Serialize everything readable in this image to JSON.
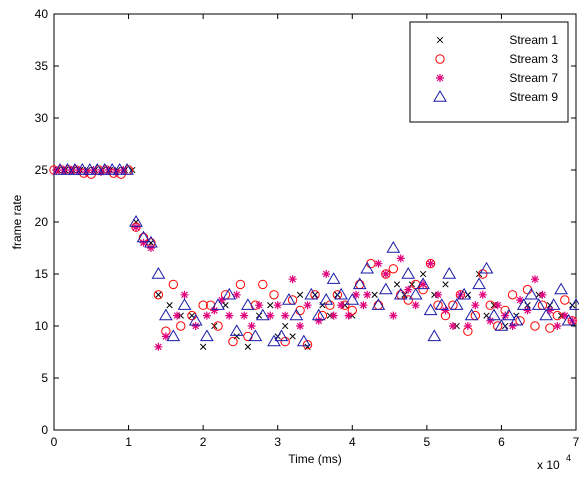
{
  "chart_data": {
    "type": "scatter",
    "xlabel": "Time (ms)",
    "ylabel": "frame rate",
    "x_exponent_label": "x 10",
    "x_exponent_power": "4",
    "xlim": [
      0,
      70000
    ],
    "ylim": [
      0,
      40
    ],
    "x_ticks": [
      0,
      10000,
      20000,
      30000,
      40000,
      50000,
      60000,
      70000
    ],
    "x_tick_labels": [
      "0",
      "1",
      "2",
      "3",
      "4",
      "5",
      "6",
      "7"
    ],
    "y_ticks": [
      0,
      5,
      10,
      15,
      20,
      25,
      30,
      35,
      40
    ],
    "y_tick_labels": [
      "0",
      "5",
      "10",
      "15",
      "20",
      "25",
      "30",
      "35",
      "40"
    ],
    "grid": false,
    "legend_position": "top-right",
    "series": [
      {
        "name": "Stream 1",
        "marker": "x",
        "color": "#000000",
        "points": [
          [
            500,
            25
          ],
          [
            1500,
            25
          ],
          [
            2500,
            25
          ],
          [
            3500,
            25
          ],
          [
            4500,
            25
          ],
          [
            5500,
            25
          ],
          [
            6500,
            25
          ],
          [
            7500,
            25
          ],
          [
            8500,
            25
          ],
          [
            9500,
            25
          ],
          [
            10500,
            25
          ],
          [
            11000,
            20
          ],
          [
            12000,
            18
          ],
          [
            13000,
            18
          ],
          [
            14000,
            13
          ],
          [
            15500,
            12
          ],
          [
            17000,
            11
          ],
          [
            18500,
            11
          ],
          [
            20000,
            8
          ],
          [
            21500,
            10
          ],
          [
            23000,
            12
          ],
          [
            24500,
            9
          ],
          [
            26000,
            8
          ],
          [
            27500,
            11
          ],
          [
            29000,
            12
          ],
          [
            30000,
            9
          ],
          [
            31000,
            10
          ],
          [
            32000,
            9
          ],
          [
            33000,
            13
          ],
          [
            34000,
            8
          ],
          [
            35000,
            13
          ],
          [
            36000,
            12
          ],
          [
            37000,
            11
          ],
          [
            38000,
            13
          ],
          [
            39000,
            12
          ],
          [
            40000,
            11
          ],
          [
            41500,
            12
          ],
          [
            43000,
            13
          ],
          [
            44500,
            15
          ],
          [
            46000,
            14
          ],
          [
            47000,
            13
          ],
          [
            48000,
            14
          ],
          [
            49500,
            15
          ],
          [
            51000,
            13
          ],
          [
            52500,
            14
          ],
          [
            54000,
            10
          ],
          [
            55500,
            13
          ],
          [
            57000,
            15
          ],
          [
            58000,
            11
          ],
          [
            59000,
            12
          ],
          [
            60500,
            10
          ],
          [
            62000,
            11
          ],
          [
            63500,
            12
          ],
          [
            65000,
            13
          ],
          [
            66500,
            12
          ],
          [
            68000,
            11
          ],
          [
            69500,
            12
          ]
        ]
      },
      {
        "name": "Stream 3",
        "marker": "o",
        "color": "#ff0000",
        "points": [
          [
            0,
            25
          ],
          [
            1000,
            25
          ],
          [
            2000,
            25
          ],
          [
            3000,
            25
          ],
          [
            4000,
            24.7
          ],
          [
            5000,
            24.6
          ],
          [
            6000,
            25
          ],
          [
            7000,
            25
          ],
          [
            8000,
            24.7
          ],
          [
            9000,
            24.6
          ],
          [
            10000,
            25
          ],
          [
            11000,
            19.5
          ],
          [
            12000,
            18.5
          ],
          [
            13000,
            18
          ],
          [
            14000,
            13
          ],
          [
            15000,
            9.5
          ],
          [
            16000,
            14
          ],
          [
            17000,
            10
          ],
          [
            18500,
            11
          ],
          [
            20000,
            12
          ],
          [
            21000,
            12
          ],
          [
            22000,
            10
          ],
          [
            23000,
            13
          ],
          [
            24000,
            8.5
          ],
          [
            25000,
            14
          ],
          [
            26000,
            9
          ],
          [
            27000,
            12
          ],
          [
            28000,
            14
          ],
          [
            29500,
            13
          ],
          [
            31000,
            8.5
          ],
          [
            32000,
            12.5
          ],
          [
            33000,
            11.5
          ],
          [
            34000,
            8.2
          ],
          [
            35000,
            13
          ],
          [
            36000,
            11
          ],
          [
            37000,
            12
          ],
          [
            38000,
            13
          ],
          [
            39000,
            12
          ],
          [
            40000,
            11.5
          ],
          [
            41000,
            14
          ],
          [
            42500,
            16
          ],
          [
            43500,
            12
          ],
          [
            44500,
            15
          ],
          [
            45500,
            15.5
          ],
          [
            46500,
            13
          ],
          [
            47500,
            12.5
          ],
          [
            48500,
            14
          ],
          [
            49500,
            13.5
          ],
          [
            50500,
            16
          ],
          [
            51500,
            12
          ],
          [
            52500,
            11
          ],
          [
            53500,
            12
          ],
          [
            54500,
            13
          ],
          [
            55500,
            9.5
          ],
          [
            56500,
            11
          ],
          [
            57500,
            15
          ],
          [
            58500,
            12
          ],
          [
            59500,
            10
          ],
          [
            60500,
            11.5
          ],
          [
            61500,
            13
          ],
          [
            62500,
            10.5
          ],
          [
            63500,
            13.5
          ],
          [
            64500,
            10
          ],
          [
            65500,
            12
          ],
          [
            66500,
            9.8
          ],
          [
            67500,
            11
          ],
          [
            68500,
            12.5
          ],
          [
            69500,
            10.5
          ]
        ]
      },
      {
        "name": "Stream 7",
        "marker": "*",
        "color": "#e0007a",
        "points": [
          [
            300,
            25
          ],
          [
            1300,
            25
          ],
          [
            2300,
            25
          ],
          [
            3300,
            25
          ],
          [
            4300,
            24.8
          ],
          [
            5300,
            25
          ],
          [
            6300,
            24.8
          ],
          [
            7300,
            25
          ],
          [
            8300,
            24.8
          ],
          [
            9300,
            25
          ],
          [
            11000,
            19.5
          ],
          [
            12000,
            18
          ],
          [
            13000,
            17.5
          ],
          [
            14000,
            8
          ],
          [
            15000,
            9
          ],
          [
            16500,
            11
          ],
          [
            17500,
            13
          ],
          [
            19000,
            10
          ],
          [
            20500,
            11
          ],
          [
            21500,
            11.5
          ],
          [
            22500,
            12.5
          ],
          [
            23500,
            11
          ],
          [
            24500,
            13
          ],
          [
            25500,
            11
          ],
          [
            26500,
            10
          ],
          [
            27500,
            12
          ],
          [
            29000,
            11
          ],
          [
            30000,
            12
          ],
          [
            31000,
            11
          ],
          [
            32000,
            14.5
          ],
          [
            33000,
            10
          ],
          [
            34000,
            12
          ],
          [
            35500,
            10.5
          ],
          [
            36500,
            15
          ],
          [
            37500,
            11
          ],
          [
            38500,
            12
          ],
          [
            39500,
            11
          ],
          [
            40500,
            13
          ],
          [
            41500,
            12
          ],
          [
            42000,
            13
          ],
          [
            43500,
            16
          ],
          [
            44500,
            15
          ],
          [
            45500,
            11
          ],
          [
            46500,
            16.5
          ],
          [
            47500,
            13.5
          ],
          [
            48500,
            12
          ],
          [
            49500,
            14
          ],
          [
            50500,
            16
          ],
          [
            51500,
            13
          ],
          [
            52500,
            11.5
          ],
          [
            53500,
            10
          ],
          [
            54500,
            13
          ],
          [
            55500,
            10
          ],
          [
            56500,
            12
          ],
          [
            57500,
            13
          ],
          [
            58500,
            10.5
          ],
          [
            59500,
            12
          ],
          [
            60500,
            11
          ],
          [
            61500,
            10
          ],
          [
            62500,
            12.5
          ],
          [
            63500,
            11.5
          ],
          [
            64500,
            14.5
          ],
          [
            65500,
            13
          ],
          [
            66500,
            11.5
          ],
          [
            67500,
            10
          ],
          [
            68500,
            11
          ],
          [
            69500,
            10.5
          ]
        ]
      },
      {
        "name": "Stream 9",
        "marker": "triangle",
        "color": "#1a1aa8",
        "points": [
          [
            800,
            25
          ],
          [
            1800,
            25
          ],
          [
            2800,
            25
          ],
          [
            3800,
            25
          ],
          [
            4800,
            25
          ],
          [
            5800,
            25
          ],
          [
            6800,
            25
          ],
          [
            7800,
            25
          ],
          [
            8800,
            25
          ],
          [
            9800,
            25
          ],
          [
            11000,
            20
          ],
          [
            12000,
            18.5
          ],
          [
            13000,
            18
          ],
          [
            14000,
            15
          ],
          [
            15000,
            11
          ],
          [
            16000,
            9
          ],
          [
            17500,
            12
          ],
          [
            19000,
            10.5
          ],
          [
            20500,
            9
          ],
          [
            22000,
            12
          ],
          [
            23500,
            13
          ],
          [
            24500,
            9.5
          ],
          [
            26000,
            12
          ],
          [
            27000,
            9
          ],
          [
            28000,
            11
          ],
          [
            29500,
            8.5
          ],
          [
            30500,
            9
          ],
          [
            31500,
            12.5
          ],
          [
            32500,
            11
          ],
          [
            33500,
            8.5
          ],
          [
            34500,
            13
          ],
          [
            35500,
            11
          ],
          [
            36500,
            12.5
          ],
          [
            37500,
            14.5
          ],
          [
            38500,
            13
          ],
          [
            40000,
            12.5
          ],
          [
            41000,
            14
          ],
          [
            42000,
            15.5
          ],
          [
            43500,
            12
          ],
          [
            44500,
            13.5
          ],
          [
            45500,
            17.5
          ],
          [
            46500,
            13
          ],
          [
            47500,
            15
          ],
          [
            48500,
            13
          ],
          [
            49500,
            14
          ],
          [
            50500,
            11.5
          ],
          [
            51000,
            9
          ],
          [
            52000,
            12
          ],
          [
            53000,
            15
          ],
          [
            54000,
            12
          ],
          [
            55000,
            13
          ],
          [
            56000,
            11
          ],
          [
            57000,
            14
          ],
          [
            58000,
            15.5
          ],
          [
            59000,
            11
          ],
          [
            60000,
            10
          ],
          [
            61000,
            11
          ],
          [
            62000,
            10.5
          ],
          [
            63000,
            12
          ],
          [
            64000,
            13
          ],
          [
            65000,
            12
          ],
          [
            66000,
            11
          ],
          [
            67000,
            12
          ],
          [
            68000,
            13.5
          ],
          [
            69000,
            10.5
          ],
          [
            70000,
            12
          ]
        ]
      }
    ]
  }
}
